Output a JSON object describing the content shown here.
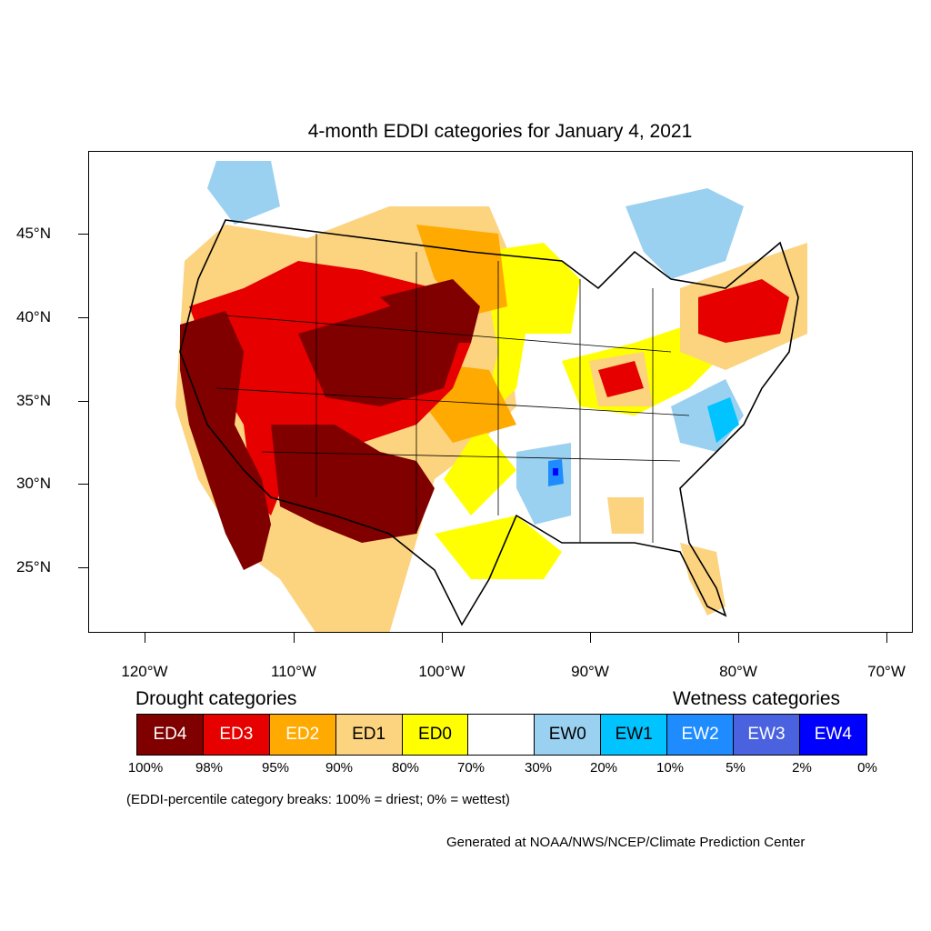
{
  "title": "4-month EDDI categories for January 4, 2021",
  "lat_labels": [
    "45°N",
    "40°N",
    "35°N",
    "30°N",
    "25°N"
  ],
  "lon_labels": [
    "120°W",
    "110°W",
    "100°W",
    "90°W",
    "80°W",
    "70°W"
  ],
  "drought_heading": "Drought categories",
  "wetness_heading": "Wetness categories",
  "categories": [
    {
      "label": "ED4",
      "color": "#800000",
      "text_color": "#ffffff"
    },
    {
      "label": "ED3",
      "color": "#e60000",
      "text_color": "#ffffff"
    },
    {
      "label": "ED2",
      "color": "#ffaa00",
      "text_color": "#ffffff"
    },
    {
      "label": "ED1",
      "color": "#fcd37f",
      "text_color": "#000000"
    },
    {
      "label": "ED0",
      "color": "#ffff00",
      "text_color": "#000000"
    },
    {
      "label": "",
      "color": "#ffffff",
      "text_color": "#000000"
    },
    {
      "label": "EW0",
      "color": "#9ad1f0",
      "text_color": "#000000"
    },
    {
      "label": "EW1",
      "color": "#00c3ff",
      "text_color": "#000000"
    },
    {
      "label": "EW2",
      "color": "#1e8cff",
      "text_color": "#ffffff"
    },
    {
      "label": "EW3",
      "color": "#4a62e0",
      "text_color": "#ffffff"
    },
    {
      "label": "EW4",
      "color": "#0000ff",
      "text_color": "#ffffff"
    }
  ],
  "percent_breaks": [
    "100%",
    "98%",
    "95%",
    "90%",
    "80%",
    "70%",
    "30%",
    "20%",
    "10%",
    "5%",
    "2%",
    "0%"
  ],
  "note": "(EDDI-percentile category breaks: 100% = driest; 0% = wettest)",
  "credit": "Generated at NOAA/NWS/NCEP/Climate Prediction Center"
}
